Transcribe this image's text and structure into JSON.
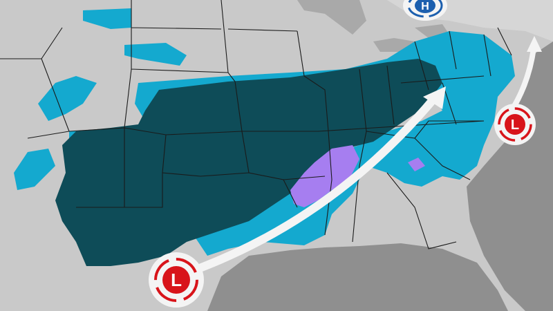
{
  "map": {
    "colors": {
      "land": "#c9c9c9",
      "water": "#8f8f8f",
      "lakes": "#a9a9a9",
      "borders": "#1a1a1a",
      "heavy_precip": "#0e4c58",
      "light_precip": "#14a9cf",
      "mixed_precip": "#a67ef0",
      "arrow": "#f4f4f4"
    },
    "systems": [
      {
        "type": "low",
        "label": "L",
        "icon": "low-pressure-icon",
        "color": "#d8141a"
      },
      {
        "type": "low",
        "label": "L",
        "icon": "low-pressure-icon",
        "color": "#d8141a"
      },
      {
        "type": "high",
        "label": "H",
        "icon": "high-pressure-icon",
        "color": "#1c5fae"
      }
    ],
    "tracks": [
      "storm-track-arrow-gulf-to-northeast",
      "storm-track-arrow-coastal"
    ]
  }
}
